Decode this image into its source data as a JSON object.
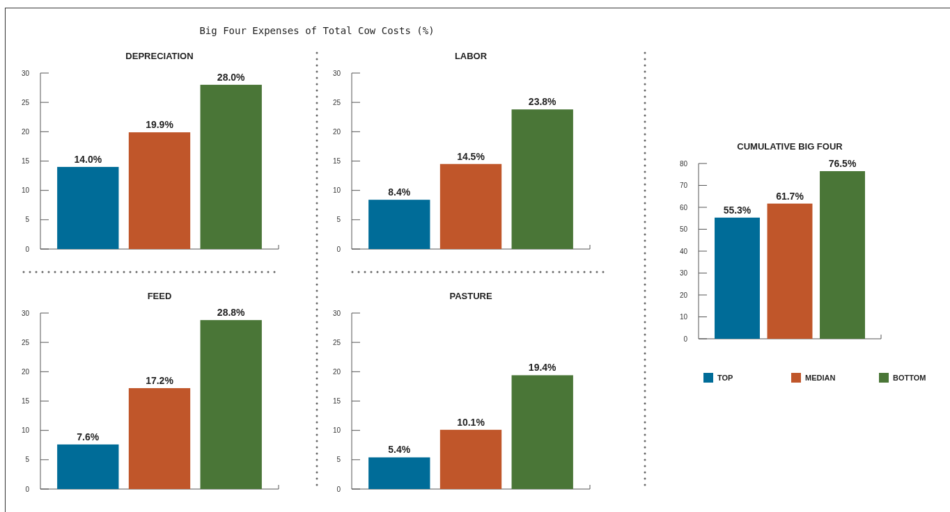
{
  "chart_data": [
    {
      "type": "bar",
      "title": "DEPRECIATION",
      "legend": false,
      "annotations": [
        "Big Four Expenses of Total Cow Costs (%)"
      ],
      "categories": [
        null,
        null,
        null
      ],
      "ylim": [
        0,
        30
      ],
      "yticks": [
        0,
        5,
        10,
        15,
        20,
        25,
        30
      ],
      "colors": [
        "#006c98",
        "#c0562a",
        "#4a7637"
      ],
      "values": [
        14.0,
        19.9,
        28.0
      ],
      "value_labels": [
        "14.0%",
        "19.9%",
        "28.0%"
      ]
    },
    {
      "type": "bar",
      "title": "LABOR",
      "legend": false,
      "categories": [
        null,
        null,
        null
      ],
      "ylim": [
        0,
        30
      ],
      "yticks": [
        0,
        5,
        10,
        15,
        20,
        25,
        30
      ],
      "colors": [
        "#006c98",
        "#c0562a",
        "#4a7637"
      ],
      "values": [
        8.4,
        14.5,
        23.8
      ],
      "value_labels": [
        "8.4%",
        "14.5%",
        "23.8%"
      ]
    },
    {
      "type": "bar",
      "title": "FEED",
      "legend": false,
      "categories": [
        null,
        null,
        null
      ],
      "ylim": [
        0,
        30
      ],
      "yticks": [
        0,
        5,
        10,
        15,
        20,
        25,
        30
      ],
      "colors": [
        "#006c98",
        "#c0562a",
        "#4a7637"
      ],
      "values": [
        7.6,
        17.2,
        28.8
      ],
      "value_labels": [
        "7.6%",
        "17.2%",
        "28.8%"
      ]
    },
    {
      "type": "bar",
      "title": "PASTURE",
      "legend": false,
      "categories": [
        null,
        null,
        null
      ],
      "ylim": [
        0,
        30
      ],
      "yticks": [
        0,
        5,
        10,
        15,
        20,
        25,
        30
      ],
      "colors": [
        "#006c98",
        "#c0562a",
        "#4a7637"
      ],
      "values": [
        5.4,
        10.1,
        19.4
      ],
      "value_labels": [
        "5.4%",
        "10.1%",
        "19.4%"
      ]
    },
    {
      "type": "bar",
      "title": "CUMULATIVE BIG FOUR",
      "categories": [
        null
      ],
      "ylim": [
        0,
        80
      ],
      "yticks": [
        0,
        10,
        20,
        30,
        40,
        50,
        60,
        70,
        80
      ],
      "legend": "bottom",
      "series": [
        {
          "name": "TOP",
          "color": "#006c98",
          "values": [
            55.3
          ],
          "value_labels": [
            "55.3%"
          ]
        },
        {
          "name": "MEDIAN",
          "color": "#c0562a",
          "values": [
            61.7
          ],
          "value_labels": [
            "61.7%"
          ]
        },
        {
          "name": "BOTTOM",
          "color": "#4a7637",
          "values": [
            76.5
          ],
          "value_labels": [
            "76.5%"
          ]
        }
      ]
    }
  ]
}
